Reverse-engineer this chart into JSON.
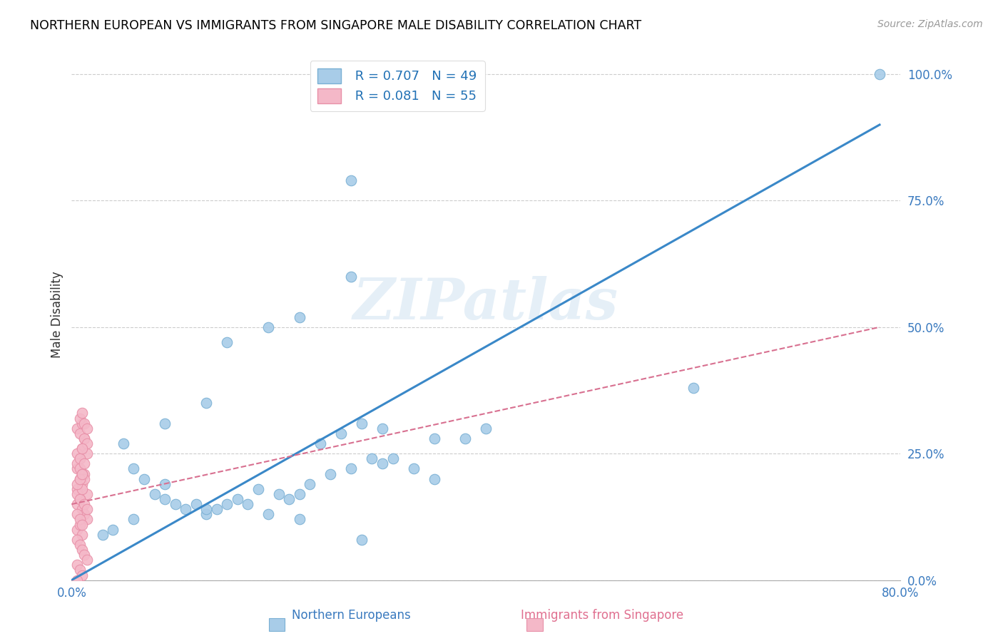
{
  "title": "NORTHERN EUROPEAN VS IMMIGRANTS FROM SINGAPORE MALE DISABILITY CORRELATION CHART",
  "source": "Source: ZipAtlas.com",
  "ylabel_label": "Male Disability",
  "legend1_R": "0.707",
  "legend1_N": "49",
  "legend2_R": "0.081",
  "legend2_N": "55",
  "blue_marker_color": "#a8cce8",
  "blue_edge_color": "#7ab0d4",
  "pink_marker_color": "#f4b8c8",
  "pink_edge_color": "#e890a8",
  "line_blue": "#3a88c8",
  "line_pink": "#d87090",
  "watermark": "ZIPatlas",
  "xlim": [
    0.0,
    0.8
  ],
  "ylim": [
    0.0,
    1.05
  ],
  "blue_line_x0": 0.0,
  "blue_line_y0": 0.0,
  "blue_line_x1": 0.78,
  "blue_line_y1": 0.9,
  "pink_line_x0": 0.0,
  "pink_line_y0": 0.15,
  "pink_line_x1": 0.78,
  "pink_line_y1": 0.5,
  "blue_scatter_x": [
    0.27,
    0.27,
    0.22,
    0.19,
    0.15,
    0.13,
    0.09,
    0.05,
    0.06,
    0.07,
    0.08,
    0.09,
    0.1,
    0.11,
    0.12,
    0.13,
    0.14,
    0.15,
    0.16,
    0.17,
    0.18,
    0.2,
    0.21,
    0.22,
    0.23,
    0.25,
    0.27,
    0.29,
    0.3,
    0.31,
    0.33,
    0.35,
    0.38,
    0.4,
    0.6,
    0.09,
    0.06,
    0.04,
    0.03,
    0.24,
    0.26,
    0.28,
    0.3,
    0.35,
    0.28,
    0.22,
    0.19,
    0.13,
    0.78
  ],
  "blue_scatter_y": [
    0.79,
    0.6,
    0.52,
    0.5,
    0.47,
    0.35,
    0.31,
    0.27,
    0.22,
    0.2,
    0.17,
    0.16,
    0.15,
    0.14,
    0.15,
    0.13,
    0.14,
    0.15,
    0.16,
    0.15,
    0.18,
    0.17,
    0.16,
    0.17,
    0.19,
    0.21,
    0.22,
    0.24,
    0.23,
    0.24,
    0.22,
    0.2,
    0.28,
    0.3,
    0.38,
    0.19,
    0.12,
    0.1,
    0.09,
    0.27,
    0.29,
    0.31,
    0.3,
    0.28,
    0.08,
    0.12,
    0.13,
    0.14,
    1.0
  ],
  "pink_scatter_x": [
    0.005,
    0.008,
    0.01,
    0.012,
    0.015,
    0.005,
    0.008,
    0.01,
    0.012,
    0.015,
    0.005,
    0.008,
    0.01,
    0.012,
    0.015,
    0.005,
    0.008,
    0.01,
    0.005,
    0.008,
    0.01,
    0.012,
    0.015,
    0.005,
    0.008,
    0.01,
    0.012,
    0.015,
    0.005,
    0.008,
    0.01,
    0.012,
    0.005,
    0.008,
    0.01,
    0.005,
    0.008,
    0.01,
    0.012,
    0.015,
    0.005,
    0.008,
    0.01,
    0.012,
    0.015,
    0.005,
    0.008,
    0.01,
    0.012,
    0.005,
    0.008,
    0.01,
    0.005,
    0.008,
    0.01
  ],
  "pink_scatter_y": [
    0.22,
    0.24,
    0.26,
    0.28,
    0.25,
    0.18,
    0.2,
    0.19,
    0.21,
    0.17,
    0.15,
    0.16,
    0.14,
    0.13,
    0.12,
    0.1,
    0.11,
    0.09,
    0.08,
    0.07,
    0.06,
    0.05,
    0.04,
    0.3,
    0.29,
    0.31,
    0.28,
    0.27,
    0.23,
    0.22,
    0.21,
    0.2,
    0.03,
    0.02,
    0.01,
    0.0,
    0.32,
    0.33,
    0.31,
    0.3,
    0.17,
    0.16,
    0.18,
    0.15,
    0.14,
    0.25,
    0.24,
    0.26,
    0.23,
    0.19,
    0.2,
    0.21,
    0.13,
    0.12,
    0.11
  ]
}
